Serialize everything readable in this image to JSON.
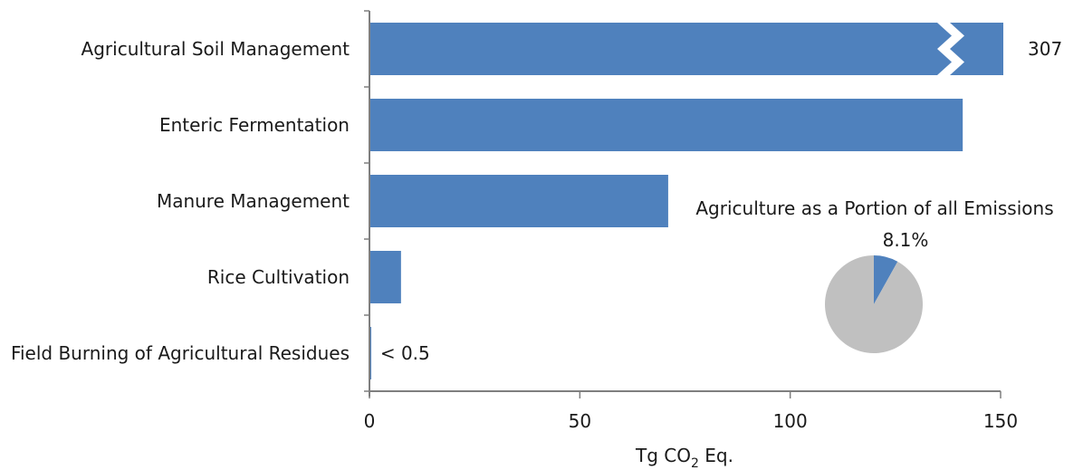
{
  "chart_data": [
    {
      "type": "bar",
      "orientation": "horizontal",
      "categories": [
        "Agricultural Soil Management",
        "Enteric Fermentation",
        "Manure Management",
        "Rice Cultivation",
        "Field Burning of Agricultural Residues"
      ],
      "values": [
        307,
        141,
        71,
        7.5,
        0.4
      ],
      "data_labels": [
        "307",
        "",
        "",
        "",
        "< 0.5"
      ],
      "axis_break": {
        "category": "Agricultural Soil Management",
        "shown_value": 307
      },
      "xlim": [
        0,
        150
      ],
      "xticks": [
        0,
        50,
        100,
        150
      ],
      "xlabel": {
        "prefix": "Tg CO",
        "subscript": "2",
        "suffix": " Eq."
      },
      "grid": false,
      "bar_color": "#4f81bd"
    },
    {
      "type": "pie",
      "title": "Agriculture as a Portion of all Emissions",
      "slices": [
        {
          "label": "8.1%",
          "value": 8.1,
          "color": "#4f81bd"
        },
        {
          "label": "",
          "value": 91.9,
          "color": "#c0c0c0"
        }
      ]
    }
  ]
}
